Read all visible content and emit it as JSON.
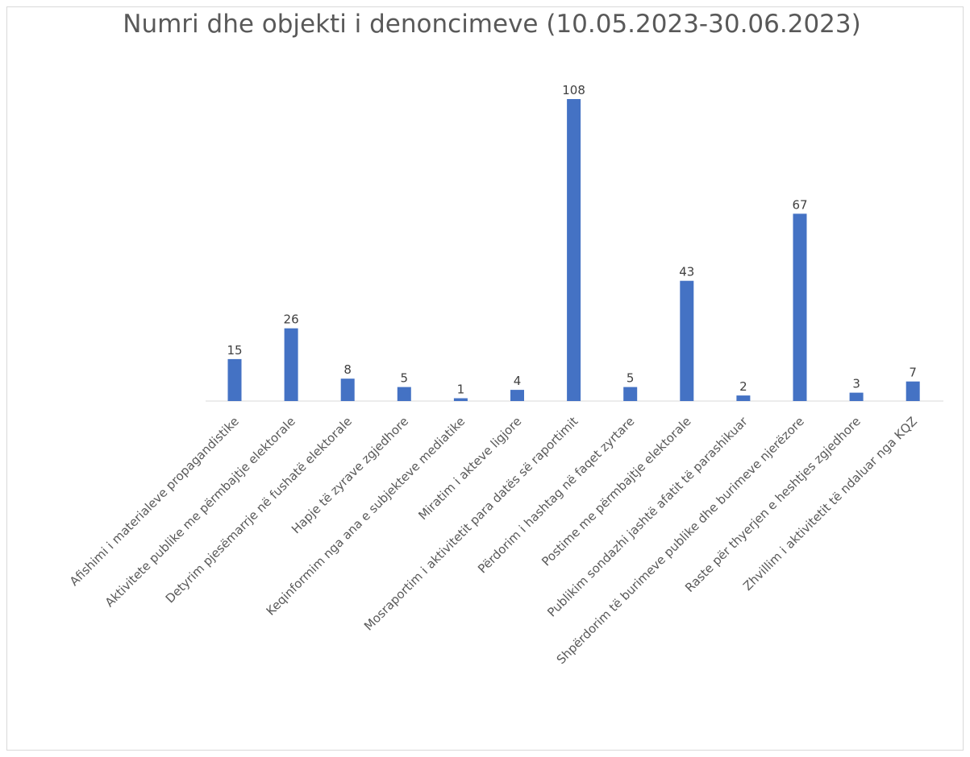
{
  "chart_data": {
    "type": "bar",
    "title": "Numri dhe objekti i denoncimeve (10.05.2023-30.06.2023)",
    "xlabel": "",
    "ylabel": "",
    "ylim": [
      0,
      108
    ],
    "grid": false,
    "legend": "none",
    "bar_color": "#4472C4",
    "categories": [
      "Afishimi i materialeve propagandistike",
      "Aktivitete publike me përmbajtje elektorale",
      "Detyrim pjesëmarrje në fushatë elektorale",
      "Hapje të zyrave zgjedhore",
      "Keqinformim nga ana e subjekteve mediatike",
      "Miratim i akteve ligjore",
      "Mosraportim i aktivitetit para datës së raportimit",
      "Përdorim i hashtag në faqet zyrtare",
      "Postime me përmbajtje elektorale",
      "Publikim sondazhi jashtë afatit të parashikuar",
      "Shpërdorim të burimeve publike dhe burimeve njerëzore",
      "Raste për thyerjen e heshtjes zgjedhore",
      "Zhvillim i aktivitetit të ndaluar nga KQZ"
    ],
    "values": [
      15,
      26,
      8,
      5,
      1,
      4,
      108,
      5,
      43,
      2,
      67,
      3,
      7
    ]
  }
}
